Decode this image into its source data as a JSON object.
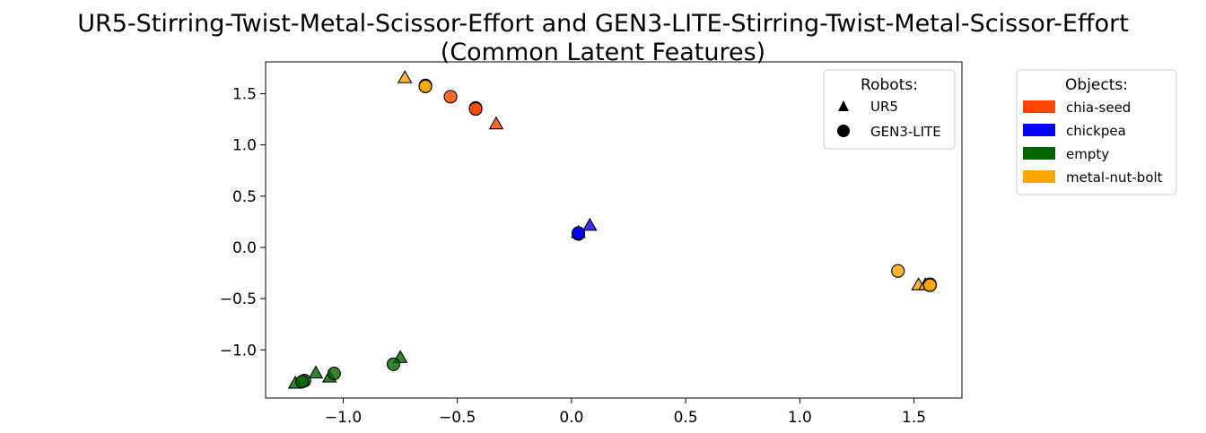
{
  "chart_data": {
    "type": "scatter",
    "title_line1": "UR5-Stirring-Twist-Metal-Scissor-Effort and GEN3-LITE-Stirring-Twist-Metal-Scissor-Effort",
    "title_line2": "(Common Latent Features)",
    "xlabel": "",
    "ylabel": "",
    "xlim": [
      -1.34,
      1.71
    ],
    "ylim": [
      -1.47,
      1.81
    ],
    "xticks": [
      -1.0,
      -0.5,
      0.0,
      0.5,
      1.0,
      1.5
    ],
    "xtick_labels": [
      "−1.0",
      "−0.5",
      "0.0",
      "0.5",
      "1.0",
      "1.5"
    ],
    "yticks": [
      -1.0,
      -0.5,
      0.0,
      0.5,
      1.0,
      1.5
    ],
    "ytick_labels": [
      "−1.0",
      "−0.5",
      "0.0",
      "0.5",
      "1.0",
      "1.5"
    ],
    "grid": false,
    "legend_robots": {
      "title": "Robots:",
      "placement": "top-right",
      "entries": [
        {
          "label": "UR5",
          "marker": "triangle"
        },
        {
          "label": "GEN3-LITE",
          "marker": "circle"
        }
      ]
    },
    "legend_objects": {
      "title": "Objects:",
      "placement": "outside-right",
      "entries": [
        {
          "label": "chia-seed",
          "color": "#FF4500"
        },
        {
          "label": "chickpea",
          "color": "#0000FF"
        },
        {
          "label": "empty",
          "color": "#006400"
        },
        {
          "label": "metal-nut-bolt",
          "color": "#FFA500"
        }
      ]
    },
    "series": [
      {
        "robot": "UR5",
        "object": "chia-seed",
        "marker": "triangle",
        "points": [
          [
            -0.33,
            1.2
          ]
        ]
      },
      {
        "robot": "GEN3-LITE",
        "object": "chia-seed",
        "marker": "circle",
        "points": [
          [
            -0.53,
            1.47
          ],
          [
            -0.42,
            1.36
          ],
          [
            -0.42,
            1.35
          ]
        ]
      },
      {
        "robot": "UR5",
        "object": "chickpea",
        "marker": "triangle",
        "points": [
          [
            0.08,
            0.21
          ],
          [
            0.03,
            0.14
          ]
        ]
      },
      {
        "robot": "GEN3-LITE",
        "object": "chickpea",
        "marker": "circle",
        "points": [
          [
            0.03,
            0.13
          ],
          [
            0.03,
            0.14
          ]
        ]
      },
      {
        "robot": "UR5",
        "object": "empty",
        "marker": "triangle",
        "points": [
          [
            -1.21,
            -1.33
          ],
          [
            -1.12,
            -1.23
          ],
          [
            -1.06,
            -1.27
          ],
          [
            -0.75,
            -1.08
          ]
        ]
      },
      {
        "robot": "GEN3-LITE",
        "object": "empty",
        "marker": "circle",
        "points": [
          [
            -1.17,
            -1.3
          ],
          [
            -1.18,
            -1.31
          ],
          [
            -1.04,
            -1.23
          ],
          [
            -0.78,
            -1.14
          ]
        ]
      },
      {
        "robot": "UR5",
        "object": "metal-nut-bolt",
        "marker": "triangle",
        "points": [
          [
            -0.73,
            1.65
          ],
          [
            1.52,
            -0.37
          ],
          [
            1.55,
            -0.37
          ]
        ]
      },
      {
        "robot": "GEN3-LITE",
        "object": "metal-nut-bolt",
        "marker": "circle",
        "points": [
          [
            -0.64,
            1.58
          ],
          [
            -0.64,
            1.57
          ],
          [
            1.43,
            -0.23
          ],
          [
            1.57,
            -0.36
          ],
          [
            1.57,
            -0.37
          ]
        ]
      }
    ]
  }
}
